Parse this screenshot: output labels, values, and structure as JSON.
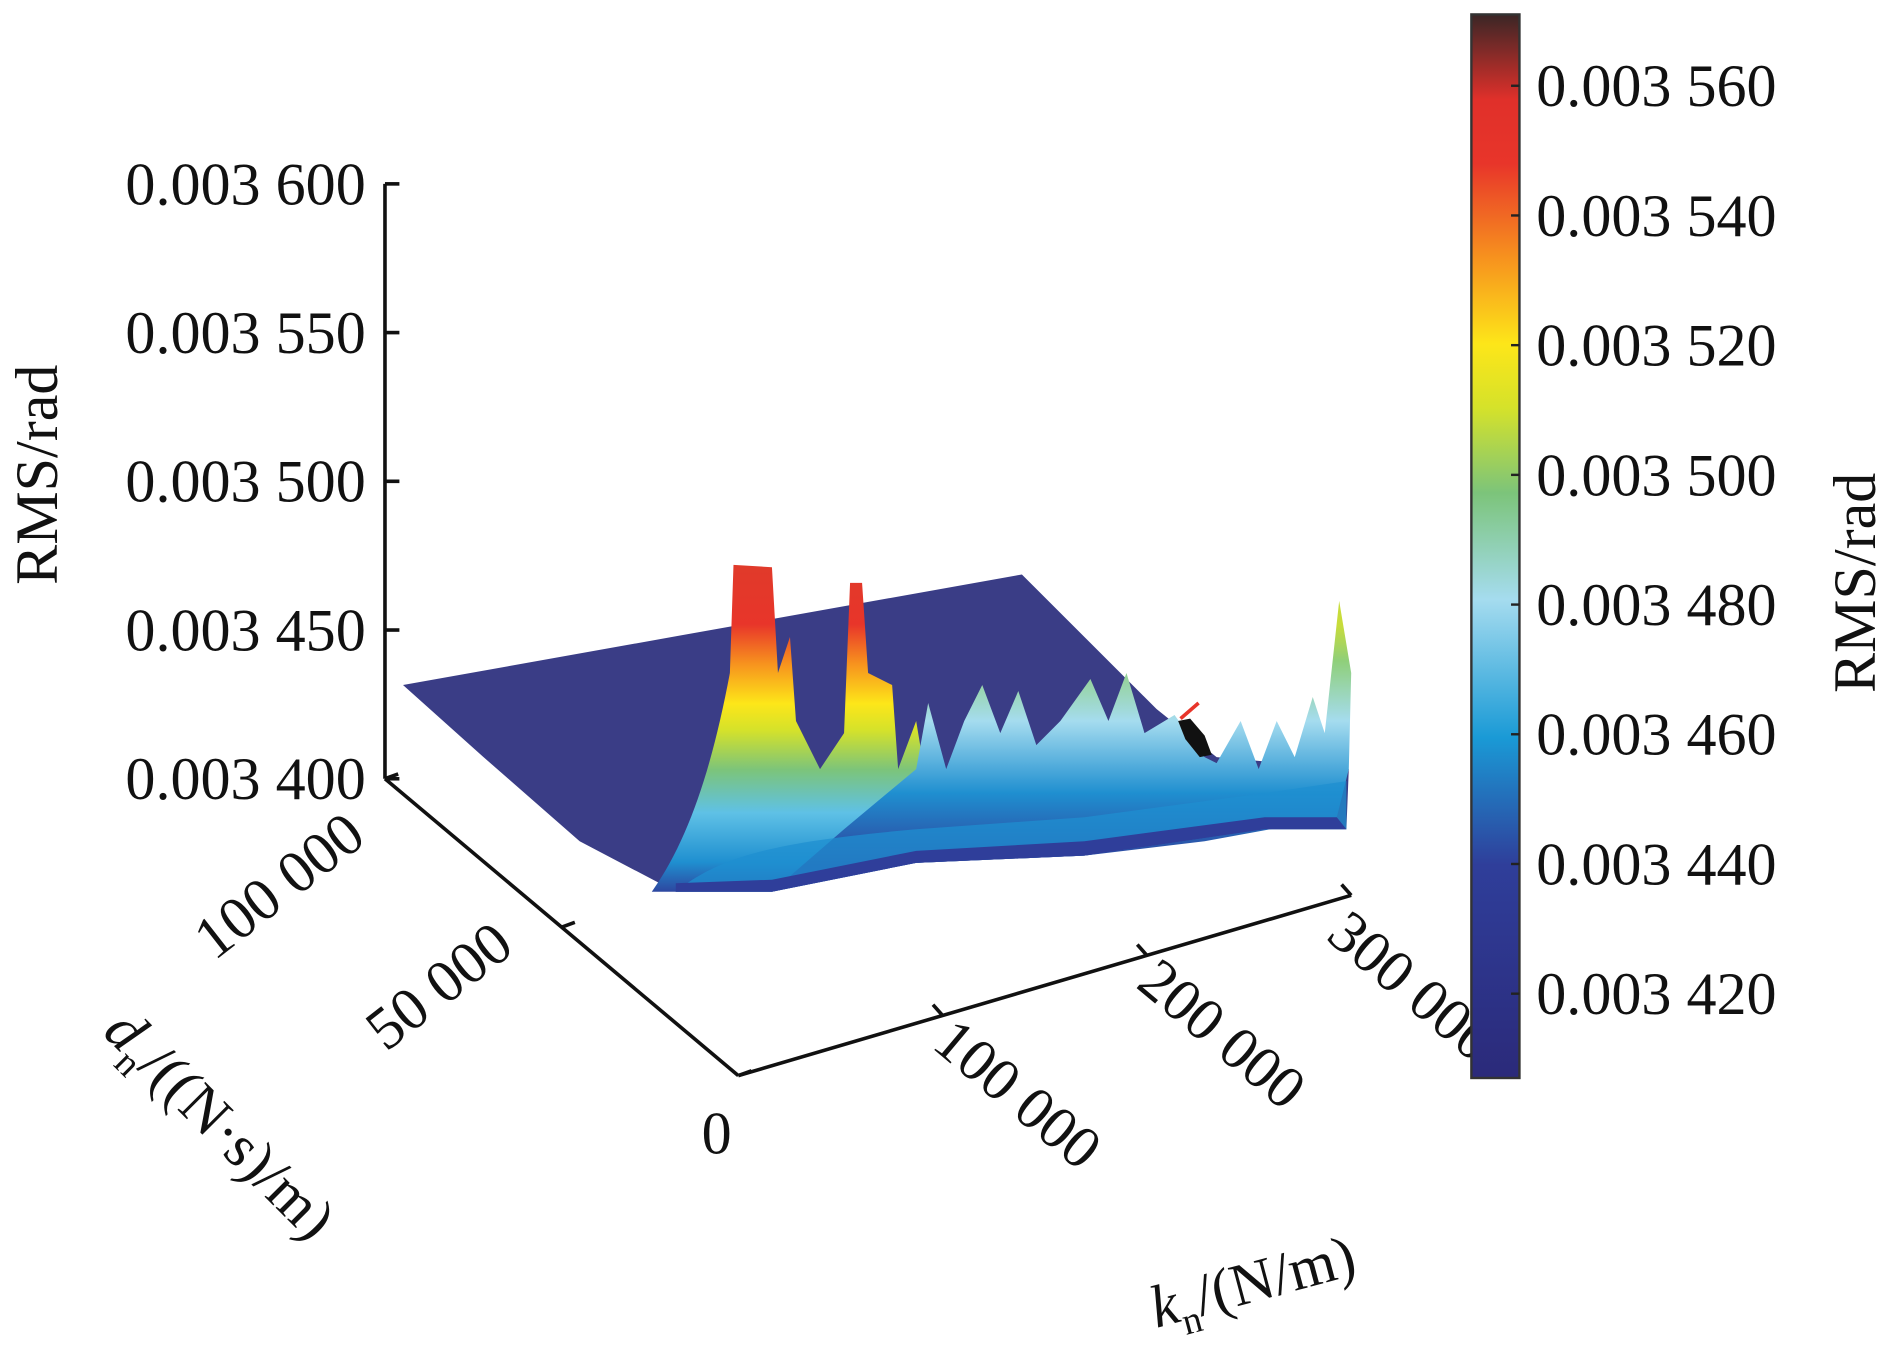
{
  "chart_data": {
    "type": "surface",
    "title": "",
    "xlabel": {
      "main": "k",
      "sub": "n",
      "unit": "/(N/m)"
    },
    "ylabel": {
      "main": "d",
      "sub": "n",
      "unit": "/((N·s)/m)"
    },
    "zlabel": "RMS/rad",
    "xlim": [
      0,
      300000
    ],
    "ylim": [
      0,
      100000
    ],
    "zlim": [
      0.0034,
      0.0036
    ],
    "x_ticks": [
      0,
      100000,
      200000,
      300000
    ],
    "x_tick_labels": [
      "100 000",
      "200 000",
      "300 000"
    ],
    "y_ticks": [
      0,
      50000,
      100000
    ],
    "y_tick_labels": [
      "0",
      "50 000",
      "100 000"
    ],
    "z_ticks": [
      0.0034,
      0.00345,
      0.0035,
      0.00355,
      0.0036
    ],
    "z_tick_labels": [
      "0.003 400",
      "0.003 450",
      "0.003 500",
      "0.003 550",
      "0.003 600"
    ],
    "colorbar": {
      "label": "RMS/rad",
      "range": [
        0.003407,
        0.003571
      ],
      "ticks": [
        0.00342,
        0.00344,
        0.00346,
        0.00348,
        0.0035,
        0.00352,
        0.00354,
        0.00356
      ],
      "tick_labels": [
        "0.003 420",
        "0.003 440",
        "0.003 460",
        "0.003 480",
        "0.003 500",
        "0.003 520",
        "0.003 540",
        "0.003 560"
      ],
      "colormap": [
        "#2b2a7a",
        "#2f3e9a",
        "#1f8fd0",
        "#9fd8ee",
        "#7cc47a",
        "#d5e22a",
        "#fde619",
        "#f7931e",
        "#e8352a",
        "#3a2a2a"
      ]
    },
    "surface_summary": {
      "baseline_rms": 0.00342,
      "max_rms": 0.00357,
      "optimum_marker_rms": 0.00343
    }
  }
}
